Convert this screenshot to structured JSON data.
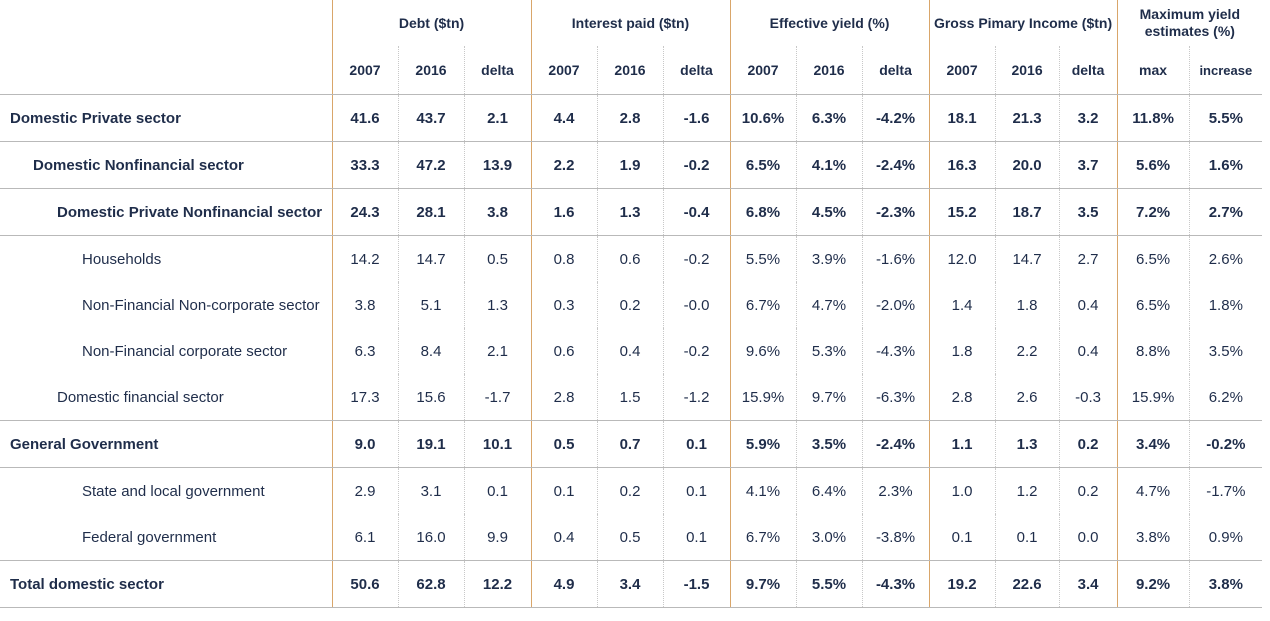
{
  "groups": {
    "debt": "Debt ($tn)",
    "interest": "Interest paid ($tn)",
    "yield": "Effective yield (%)",
    "gpi": "Gross Pimary Income ($tn)",
    "max": "Maximum  yield estimates (%)"
  },
  "subheaders": [
    "2007",
    "2016",
    "delta",
    "2007",
    "2016",
    "delta",
    "2007",
    "2016",
    "delta",
    "2007",
    "2016",
    "delta",
    "max",
    "increase"
  ],
  "rows": [
    {
      "label": "Domestic Private sector",
      "values": [
        "41.6",
        "43.7",
        "2.1",
        "4.4",
        "2.8",
        "-1.6",
        "10.6%",
        "6.3%",
        "-4.2%",
        "18.1",
        "21.3",
        "3.2",
        "11.8%",
        "5.5%"
      ]
    },
    {
      "label": "Domestic Nonfinancial sector",
      "values": [
        "33.3",
        "47.2",
        "13.9",
        "2.2",
        "1.9",
        "-0.2",
        "6.5%",
        "4.1%",
        "-2.4%",
        "16.3",
        "20.0",
        "3.7",
        "5.6%",
        "1.6%"
      ]
    },
    {
      "label": "Domestic Private Nonfinancial sector",
      "values": [
        "24.3",
        "28.1",
        "3.8",
        "1.6",
        "1.3",
        "-0.4",
        "6.8%",
        "4.5%",
        "-2.3%",
        "15.2",
        "18.7",
        "3.5",
        "7.2%",
        "2.7%"
      ]
    },
    {
      "label": "Households",
      "values": [
        "14.2",
        "14.7",
        "0.5",
        "0.8",
        "0.6",
        "-0.2",
        "5.5%",
        "3.9%",
        "-1.6%",
        "12.0",
        "14.7",
        "2.7",
        "6.5%",
        "2.6%"
      ]
    },
    {
      "label": "Non-Financial Non-corporate sector",
      "values": [
        "3.8",
        "5.1",
        "1.3",
        "0.3",
        "0.2",
        "-0.0",
        "6.7%",
        "4.7%",
        "-2.0%",
        "1.4",
        "1.8",
        "0.4",
        "6.5%",
        "1.8%"
      ]
    },
    {
      "label": "Non-Financial corporate sector",
      "values": [
        "6.3",
        "8.4",
        "2.1",
        "0.6",
        "0.4",
        "-0.2",
        "9.6%",
        "5.3%",
        "-4.3%",
        "1.8",
        "2.2",
        "0.4",
        "8.8%",
        "3.5%"
      ]
    },
    {
      "label": "Domestic financial sector",
      "values": [
        "17.3",
        "15.6",
        "-1.7",
        "2.8",
        "1.5",
        "-1.2",
        "15.9%",
        "9.7%",
        "-6.3%",
        "2.8",
        "2.6",
        "-0.3",
        "15.9%",
        "6.2%"
      ]
    },
    {
      "label": "General Government",
      "values": [
        "9.0",
        "19.1",
        "10.1",
        "0.5",
        "0.7",
        "0.1",
        "5.9%",
        "3.5%",
        "-2.4%",
        "1.1",
        "1.3",
        "0.2",
        "3.4%",
        "-0.2%"
      ]
    },
    {
      "label": "State and local government",
      "values": [
        "2.9",
        "3.1",
        "0.1",
        "0.1",
        "0.2",
        "0.1",
        "4.1%",
        "6.4%",
        "2.3%",
        "1.0",
        "1.2",
        "0.2",
        "4.7%",
        "-1.7%"
      ]
    },
    {
      "label": "Federal government",
      "values": [
        "6.1",
        "16.0",
        "9.9",
        "0.4",
        "0.5",
        "0.1",
        "6.7%",
        "3.0%",
        "-3.8%",
        "0.1",
        "0.1",
        "0.0",
        "3.8%",
        "0.9%"
      ]
    },
    {
      "label": "Total domestic sector",
      "values": [
        "50.6",
        "62.8",
        "12.2",
        "4.9",
        "3.4",
        "-1.5",
        "9.7%",
        "5.5%",
        "-4.3%",
        "19.2",
        "22.6",
        "3.4",
        "9.2%",
        "3.8%"
      ]
    }
  ],
  "colors": {
    "text": "#1f2d4a",
    "group_divider": "#d9a66a",
    "row_rule": "#b9b9b9",
    "dotted": "#c8c8c8"
  }
}
